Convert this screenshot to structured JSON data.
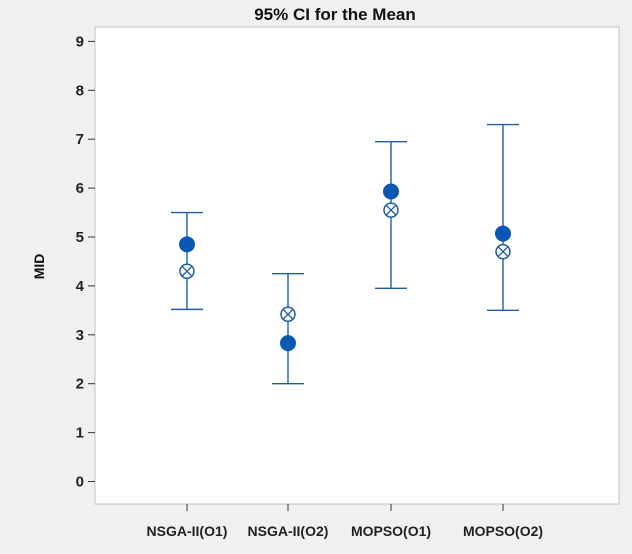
{
  "chart_data": {
    "type": "interval",
    "title": "95% CI for the Mean",
    "xlabel": "",
    "ylabel": "MID",
    "ylim": [
      -0.2,
      9.2
    ],
    "yticks": [
      0,
      1,
      2,
      3,
      4,
      5,
      6,
      7,
      8,
      9
    ],
    "grid": false,
    "legend": "none",
    "categories": [
      "NSGA-II(O1)",
      "NSGA-II(O2)",
      "MOPSO(O1)",
      "MOPSO(O2)"
    ],
    "series": [
      {
        "name": "",
        "marker": "filled-circle",
        "values": [
          4.85,
          2.83,
          5.93,
          5.07
        ]
      },
      {
        "name": "",
        "marker": "crossed-circle",
        "values": [
          4.3,
          3.42,
          5.55,
          4.7
        ]
      }
    ],
    "ci_lower": [
      3.52,
      2.0,
      3.95,
      3.5
    ],
    "ci_upper": [
      5.5,
      4.25,
      6.95,
      7.3
    ]
  },
  "colors": {
    "interval": "#1f5fa8",
    "filled_marker": "#0a58b4",
    "background": "#f0f0f0",
    "plot_background": "#ffffff",
    "frame": "#c0c0c0"
  }
}
